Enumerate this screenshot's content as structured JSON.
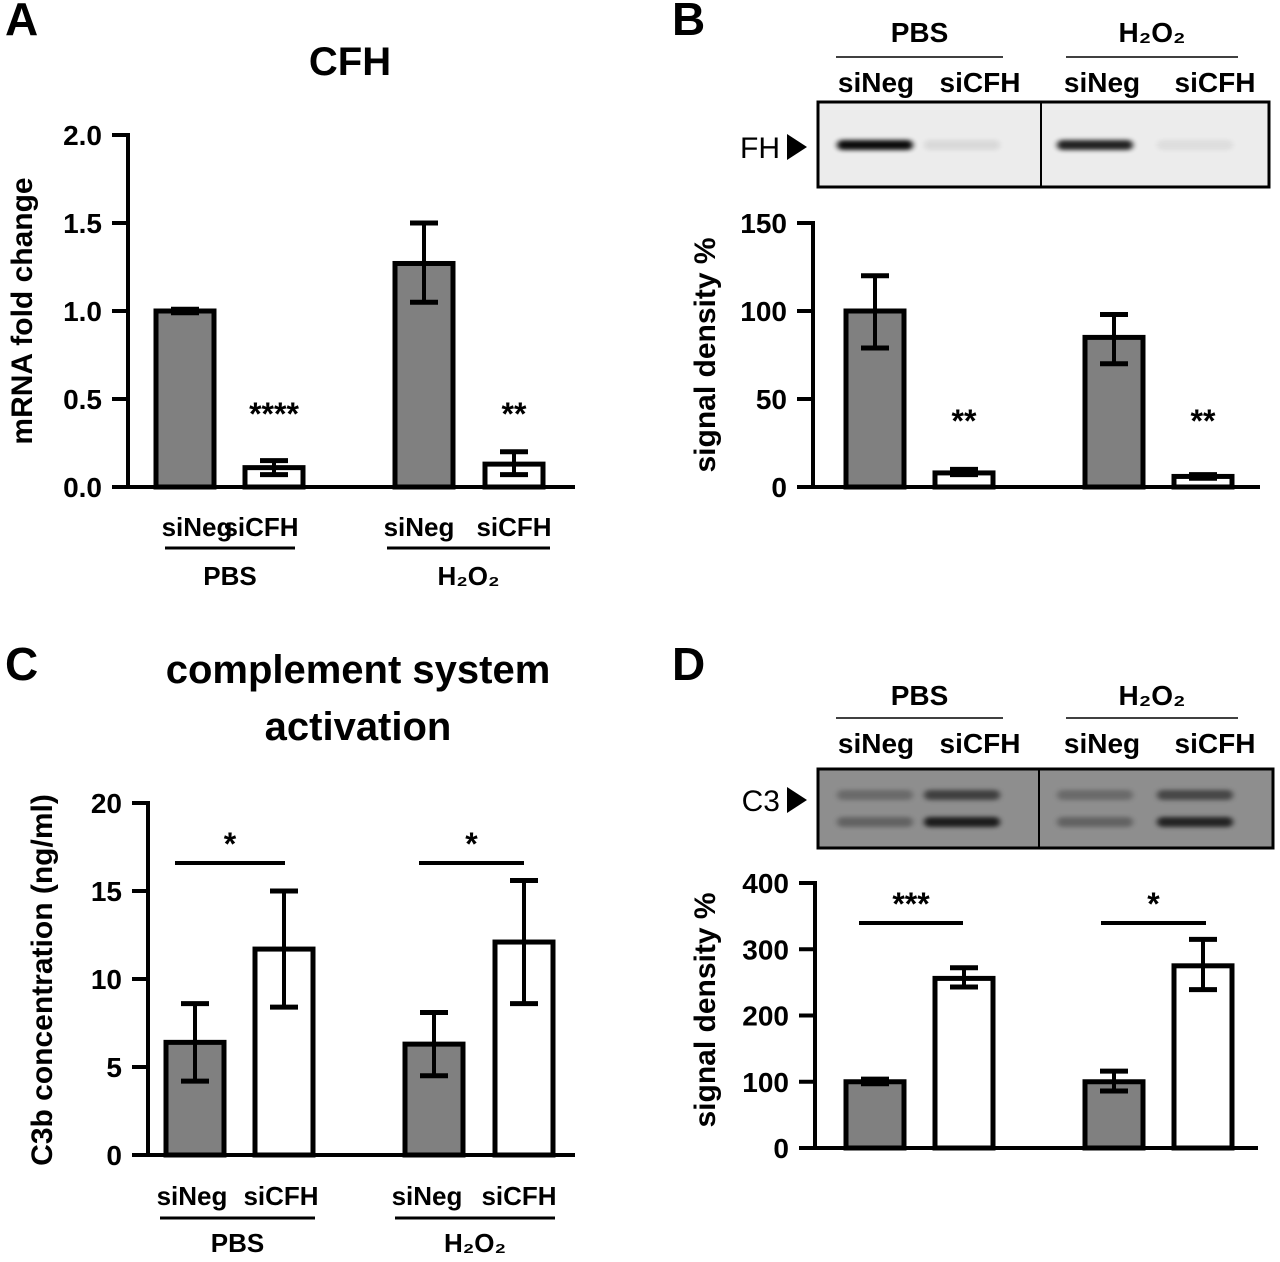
{
  "colors": {
    "siNeg": "#808080",
    "siCFH": "#ffffff",
    "axis": "#000000",
    "blot_bg_B": "#ececec",
    "blot_bg_D": "#8e8e8e"
  },
  "chart_data": [
    {
      "panel": "A",
      "type": "bar",
      "title": "CFH",
      "ylabel": "mRNA fold change",
      "ylim": [
        0,
        2.0
      ],
      "yticks": [
        "0.0",
        "0.5",
        "1.0",
        "1.5",
        "2.0"
      ],
      "ytick_values": [
        0,
        0.5,
        1.0,
        1.5,
        2.0
      ],
      "groups": [
        "PBS",
        "H₂O₂"
      ],
      "categories": [
        "siNeg",
        "siCFH",
        "siNeg",
        "siCFH"
      ],
      "values": [
        1.0,
        0.11,
        1.27,
        0.13
      ],
      "errors": [
        [
          0.99,
          1.01
        ],
        [
          0.07,
          0.15
        ],
        [
          1.05,
          1.5
        ],
        [
          0.07,
          0.2
        ]
      ],
      "annotations": [
        "",
        "****",
        "",
        "**"
      ]
    },
    {
      "panel": "B",
      "type": "bar",
      "ylabel": "signal density %",
      "ylim": [
        0,
        150
      ],
      "yticks": [
        "0",
        "50",
        "100",
        "150"
      ],
      "ytick_values": [
        0,
        50,
        100,
        150
      ],
      "groups": [
        "PBS",
        "H₂O₂"
      ],
      "categories": [
        "siNeg",
        "siCFH",
        "siNeg",
        "siCFH"
      ],
      "values": [
        100,
        8,
        85,
        6
      ],
      "errors": [
        [
          79,
          120
        ],
        [
          7,
          10
        ],
        [
          70,
          98
        ],
        [
          5,
          7
        ]
      ],
      "annotations": [
        "",
        "**",
        "",
        "**"
      ],
      "blot": {
        "label": "FH",
        "background": "light",
        "bands": [
          [
            0.95
          ],
          [
            0.08
          ],
          [
            0.85
          ],
          [
            0.06
          ]
        ]
      }
    },
    {
      "panel": "C",
      "type": "bar",
      "title": [
        "complement system",
        "activation"
      ],
      "ylabel": "C3b concentration (ng/ml)",
      "ylim": [
        0,
        20
      ],
      "yticks": [
        "0",
        "5",
        "10",
        "15",
        "20"
      ],
      "ytick_values": [
        0,
        5,
        10,
        15,
        20
      ],
      "groups": [
        "PBS",
        "H₂O₂"
      ],
      "categories": [
        "siNeg",
        "siCFH",
        "siNeg",
        "siCFH"
      ],
      "values": [
        6.4,
        11.7,
        6.3,
        12.1
      ],
      "errors": [
        [
          4.2,
          8.6
        ],
        [
          8.4,
          15.0
        ],
        [
          4.5,
          8.1
        ],
        [
          8.6,
          15.6
        ]
      ],
      "significance": [
        "*",
        "*"
      ]
    },
    {
      "panel": "D",
      "type": "bar",
      "ylabel": "signal density %",
      "ylim": [
        0,
        400
      ],
      "yticks": [
        "0",
        "100",
        "200",
        "300",
        "400"
      ],
      "ytick_values": [
        0,
        100,
        200,
        300,
        400
      ],
      "groups": [
        "PBS",
        "H₂O₂"
      ],
      "categories": [
        "siNeg",
        "siCFH",
        "siNeg",
        "siCFH"
      ],
      "values": [
        100,
        256,
        100,
        275
      ],
      "errors": [
        [
          97,
          104
        ],
        [
          243,
          272
        ],
        [
          86,
          116
        ],
        [
          239,
          315
        ]
      ],
      "significance": [
        "***",
        "*"
      ],
      "blot": {
        "label": "C3",
        "background": "dark",
        "bands": [
          [
            0.25,
            0.3
          ],
          [
            0.55,
            0.8
          ],
          [
            0.25,
            0.3
          ],
          [
            0.5,
            0.75
          ]
        ]
      }
    }
  ]
}
